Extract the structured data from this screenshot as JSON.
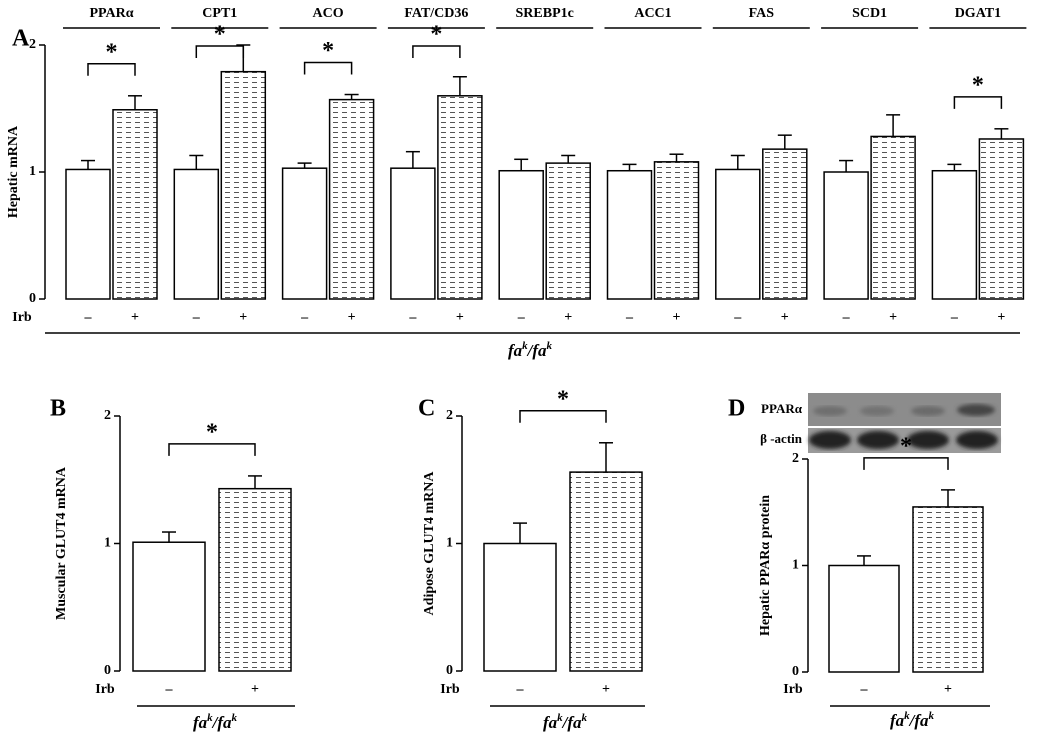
{
  "chart_data": [
    {
      "type": "bar",
      "panel_label": "A",
      "ylabel": "Hepatic mRNA",
      "categories": [
        "PPARα",
        "CPT1",
        "ACO",
        "FAT/CD36",
        "SREBP1c",
        "ACC1",
        "FAS",
        "SCD1",
        "DGAT1"
      ],
      "series": [
        {
          "name": "–",
          "color": "#ffffff",
          "hatch": false,
          "values": [
            1.02,
            1.02,
            1.03,
            1.03,
            1.01,
            1.01,
            1.02,
            1.0,
            1.01
          ],
          "errors": [
            0.07,
            0.11,
            0.04,
            0.13,
            0.09,
            0.05,
            0.11,
            0.09,
            0.05
          ]
        },
        {
          "name": "+",
          "color": "#ffffff",
          "hatch": true,
          "values": [
            1.49,
            1.79,
            1.57,
            1.6,
            1.07,
            1.08,
            1.18,
            1.28,
            1.26
          ],
          "errors": [
            0.11,
            0.21,
            0.04,
            0.15,
            0.06,
            0.06,
            0.11,
            0.17,
            0.08
          ]
        }
      ],
      "ylim": [
        0,
        2
      ],
      "yticks": [
        0,
        1,
        2
      ],
      "significant": [
        true,
        true,
        true,
        true,
        false,
        false,
        false,
        false,
        true
      ],
      "significance_label": "*",
      "treatment_label": "Irb",
      "group_label": [
        {
          "text": "fa"
        },
        {
          "text": "k",
          "sup": true
        },
        {
          "text": "/fa"
        },
        {
          "text": "k",
          "sup": true
        }
      ]
    },
    {
      "type": "bar",
      "panel_label": "B",
      "ylabel": "Muscular GLUT4 mRNA",
      "categories": [
        null
      ],
      "series": [
        {
          "name": "–",
          "color": "#ffffff",
          "hatch": false,
          "values": [
            1.01
          ],
          "errors": [
            0.08
          ]
        },
        {
          "name": "+",
          "color": "#ffffff",
          "hatch": true,
          "values": [
            1.43
          ],
          "errors": [
            0.1
          ]
        }
      ],
      "ylim": [
        0,
        2
      ],
      "yticks": [
        0,
        1,
        2
      ],
      "significant": [
        true
      ],
      "significance_label": "*",
      "treatment_label": "Irb",
      "group_label": [
        {
          "text": "fa"
        },
        {
          "text": "k",
          "sup": true
        },
        {
          "text": "/fa"
        },
        {
          "text": "k",
          "sup": true
        }
      ]
    },
    {
      "type": "bar",
      "panel_label": "C",
      "ylabel": "Adipose GLUT4 mRNA",
      "categories": [
        null
      ],
      "series": [
        {
          "name": "–",
          "color": "#ffffff",
          "hatch": false,
          "values": [
            1.0
          ],
          "errors": [
            0.16
          ]
        },
        {
          "name": "+",
          "color": "#ffffff",
          "hatch": true,
          "values": [
            1.56
          ],
          "errors": [
            0.23
          ]
        }
      ],
      "ylim": [
        0,
        2
      ],
      "yticks": [
        0,
        1,
        2
      ],
      "significant": [
        true
      ],
      "significance_label": "*",
      "treatment_label": "Irb",
      "group_label": [
        {
          "text": "fa"
        },
        {
          "text": "k",
          "sup": true
        },
        {
          "text": "/fa"
        },
        {
          "text": "k",
          "sup": true
        }
      ]
    },
    {
      "type": "bar",
      "panel_label": "D",
      "ylabel": "Hepatic PPARα  protein",
      "categories": [
        null
      ],
      "series": [
        {
          "name": "–",
          "color": "#ffffff",
          "hatch": false,
          "values": [
            1.0
          ],
          "errors": [
            0.09
          ]
        },
        {
          "name": "+",
          "color": "#ffffff",
          "hatch": true,
          "values": [
            1.55
          ],
          "errors": [
            0.16
          ]
        }
      ],
      "ylim": [
        0,
        2
      ],
      "yticks": [
        0,
        1,
        2
      ],
      "significant": [
        true
      ],
      "significance_label": "*",
      "treatment_label": "Irb",
      "group_label": [
        {
          "text": "fa"
        },
        {
          "text": "k",
          "sup": true
        },
        {
          "text": "/fa"
        },
        {
          "text": "k",
          "sup": true
        }
      ],
      "blot_labels": [
        "PPARα",
        "β -actin"
      ]
    }
  ]
}
